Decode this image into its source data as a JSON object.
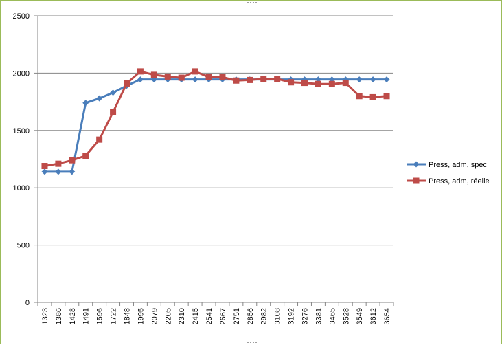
{
  "chart_data": {
    "type": "line",
    "categories": [
      "1323",
      "1386",
      "1428",
      "1491",
      "1596",
      "1722",
      "1848",
      "1995",
      "2079",
      "2205",
      "2310",
      "2415",
      "2541",
      "2667",
      "2751",
      "2856",
      "2982",
      "3108",
      "3192",
      "3276",
      "3381",
      "3465",
      "3528",
      "3549",
      "3612",
      "3654"
    ],
    "series": [
      {
        "name": "Press, adm, spec",
        "color": "#4a7ebb",
        "marker": "diamond",
        "values": [
          1140,
          1140,
          1140,
          1740,
          1780,
          1830,
          1890,
          1945,
          1945,
          1945,
          1945,
          1945,
          1945,
          1945,
          1945,
          1945,
          1945,
          1945,
          1945,
          1945,
          1945,
          1945,
          1945,
          1945,
          1945,
          1945
        ]
      },
      {
        "name": "Press, adm, réelle",
        "color": "#be4b48",
        "marker": "square",
        "values": [
          1190,
          1210,
          1240,
          1280,
          1420,
          1660,
          1910,
          2015,
          1985,
          1970,
          1960,
          2015,
          1965,
          1965,
          1935,
          1940,
          1950,
          1950,
          1920,
          1915,
          1905,
          1905,
          1915,
          1800,
          1790,
          1800
        ]
      }
    ],
    "y_ticks": [
      "0",
      "500",
      "1000",
      "1500",
      "2000",
      "2500"
    ],
    "ylim": [
      0,
      2500
    ],
    "grid": true,
    "legend": "right",
    "gridline_color": "#868686",
    "axis_color": "#868686"
  }
}
